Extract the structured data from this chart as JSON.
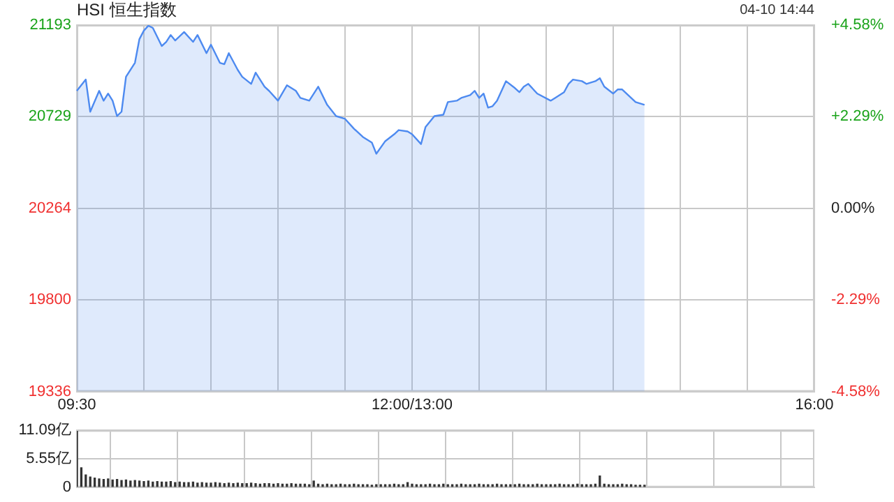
{
  "chart_data": [
    {
      "type": "area",
      "title": "HSI 恒生指数",
      "annotations": [
        "04-10 14:44"
      ],
      "categories": [
        "09:30",
        null,
        null,
        null,
        null,
        null,
        null,
        null,
        null,
        null,
        null,
        null,
        null,
        null,
        null,
        null,
        null,
        null,
        null,
        null,
        null,
        null,
        null,
        null,
        null,
        null,
        null,
        null,
        null,
        null,
        null,
        null,
        null,
        null,
        null,
        null,
        null,
        null,
        null,
        null,
        null,
        null,
        null,
        null,
        null,
        null,
        null,
        null,
        null,
        null,
        null,
        null,
        null,
        null,
        null,
        null,
        null,
        null,
        null,
        null,
        null,
        null,
        null,
        null,
        null,
        null,
        null,
        null,
        null,
        null,
        null,
        null,
        null,
        null,
        null,
        "12:00/13:00",
        null,
        null,
        null,
        null,
        null,
        null,
        null,
        null,
        null,
        null,
        null,
        null,
        null,
        null,
        null,
        null,
        null,
        null,
        null,
        null,
        null,
        null,
        null,
        null,
        null,
        null,
        null,
        null,
        null,
        null,
        null,
        null,
        null,
        null,
        null,
        null,
        null,
        null,
        null,
        null,
        null,
        null,
        null,
        null,
        null,
        null,
        null,
        null,
        null,
        null,
        null,
        null,
        null,
        null,
        null,
        null,
        null,
        null,
        null,
        null,
        null,
        null,
        null,
        null,
        null,
        null,
        null,
        null,
        null,
        null,
        null,
        null,
        null,
        null,
        null,
        null,
        null,
        null,
        null,
        null,
        null,
        null,
        null,
        null,
        null,
        null,
        null,
        null,
        null,
        "16:00"
      ],
      "series": [
        {
          "color": "#4d8af0",
          "values": [
            20860,
            null,
            20917,
            20754,
            null,
            20860,
            20810,
            20846,
            20810,
            20732,
            20754,
            20931,
            null,
            21002,
            21122,
            21165,
            21190,
            21179,
            null,
            21087,
            21108,
            21143,
            21115,
            null,
            21158,
            null,
            21108,
            21143,
            null,
            21051,
            21094,
            null,
            21002,
            20995,
            21051,
            null,
            20966,
            20931,
            null,
            20895,
            20952,
            null,
            20881,
            20860,
            null,
            20810,
            null,
            20888,
            null,
            20860,
            20824,
            null,
            20810,
            null,
            20881,
            null,
            20789,
            null,
            20732,
            null,
            20718,
            null,
            20668,
            null,
            20626,
            null,
            20598,
            20541,
            null,
            20605,
            null,
            20640,
            20661,
            null,
            20654,
            20640,
            null,
            20590,
            20676,
            null,
            20732,
            null,
            20739,
            20803,
            null,
            20810,
            20824,
            null,
            20838,
            20860,
            20824,
            20846,
            20775,
            20782,
            20810,
            null,
            20909,
            null,
            20874,
            20853,
            20881,
            20895,
            null,
            20846,
            null,
            null,
            20810,
            20824,
            null,
            20853,
            20895,
            20917,
            null,
            20909,
            20895,
            null,
            20909,
            20924,
            20881,
            null,
            20846,
            20867,
            20867,
            null,
            20824,
            20803,
            null,
            20789,
            null,
            null,
            null,
            null,
            null,
            null,
            null,
            null,
            null,
            null,
            null,
            null,
            null,
            null,
            null,
            null,
            null,
            null,
            null,
            null,
            null,
            null,
            null,
            null,
            null,
            null,
            null,
            null,
            null,
            null,
            null,
            null,
            null,
            null,
            null,
            null,
            null,
            null
          ]
        }
      ],
      "ylim": [
        19336,
        21193
      ],
      "yticks": [
        19336,
        19800,
        20264,
        20729,
        21193
      ],
      "y2lim": [
        -4.58,
        4.58
      ],
      "y2ticks": [
        {
          "value": -4.58,
          "label": "-4.58%"
        },
        {
          "value": -2.29,
          "label": "-2.29%"
        },
        {
          "value": 0,
          "label": "0.00%"
        },
        {
          "value": 2.29,
          "label": "+2.29%"
        },
        {
          "value": 4.58,
          "label": "+4.58%"
        }
      ],
      "grid": true,
      "legend": false
    },
    {
      "type": "bar",
      "categories": [
        null,
        null,
        null,
        null,
        null,
        null,
        null,
        null,
        null,
        null,
        null,
        null,
        null,
        null,
        null,
        null,
        null,
        null,
        null,
        null,
        null,
        null,
        null,
        null,
        null,
        null,
        null,
        null,
        null,
        null,
        null,
        null,
        null,
        null,
        null,
        null,
        null,
        null,
        null,
        null,
        null,
        null,
        null,
        null,
        null,
        null,
        null,
        null,
        null,
        null,
        null,
        null,
        null,
        null,
        null,
        null,
        null,
        null,
        null,
        null,
        null,
        null,
        null,
        null,
        null,
        null,
        null,
        null,
        null,
        null,
        null,
        null,
        null,
        null,
        null,
        null,
        null,
        null,
        null,
        null,
        null,
        null,
        null,
        null,
        null,
        null,
        null,
        null,
        null,
        null,
        null,
        null,
        null,
        null,
        null,
        null,
        null,
        null,
        null,
        null,
        null,
        null,
        null,
        null,
        null,
        null,
        null,
        null,
        null,
        null,
        null,
        null,
        null,
        null,
        null,
        null,
        null,
        null,
        null,
        null,
        null,
        null,
        null,
        null,
        null,
        null,
        null,
        null,
        null,
        null,
        null,
        null,
        null,
        null,
        null,
        null,
        null,
        null,
        null,
        null,
        null,
        null,
        null,
        null,
        null,
        null,
        null,
        null,
        null,
        null,
        null,
        null,
        null,
        null,
        null,
        null,
        null,
        null,
        null,
        null,
        null,
        null,
        null,
        null,
        null,
        null
      ],
      "series": [
        {
          "color": "#333333",
          "values": [
            10.9,
            3.8,
            2.4,
            2.0,
            1.8,
            1.6,
            1.5,
            1.6,
            1.4,
            1.5,
            1.3,
            1.4,
            1.2,
            1.3,
            1.2,
            1.1,
            1.2,
            1.0,
            1.1,
            1.0,
            1.0,
            1.1,
            0.9,
            1.0,
            0.9,
            0.9,
            1.0,
            0.8,
            0.9,
            0.8,
            0.8,
            0.9,
            0.8,
            0.7,
            0.8,
            0.7,
            0.8,
            0.7,
            0.7,
            0.8,
            0.7,
            0.6,
            0.7,
            0.7,
            0.6,
            0.7,
            0.6,
            0.6,
            0.7,
            0.6,
            0.6,
            0.6,
            0.5,
            1.2,
            0.6,
            0.5,
            0.6,
            0.5,
            0.5,
            0.6,
            0.5,
            0.5,
            0.6,
            0.5,
            0.5,
            0.5,
            0.4,
            0.5,
            0.5,
            0.5,
            0.5,
            0.6,
            0.5,
            0.5,
            0.9,
            0.6,
            0.5,
            0.5,
            0.5,
            0.6,
            0.5,
            0.5,
            0.6,
            0.5,
            0.5,
            0.5,
            0.6,
            0.5,
            0.5,
            0.5,
            0.6,
            0.5,
            0.5,
            0.5,
            0.6,
            0.5,
            0.5,
            0.5,
            0.5,
            0.6,
            0.5,
            0.5,
            0.5,
            0.6,
            0.5,
            0.5,
            0.5,
            0.5,
            0.6,
            0.5,
            0.5,
            0.5,
            0.6,
            0.5,
            0.5,
            0.5,
            0.6,
            2.2,
            0.6,
            0.5,
            0.5,
            0.5,
            0.6,
            0.5,
            0.5,
            0.4,
            0.4,
            0.4,
            null,
            null,
            null,
            null,
            null,
            null,
            null,
            null,
            null,
            null,
            null,
            null,
            null,
            null,
            null,
            null,
            null,
            null,
            null,
            null,
            null,
            null,
            null,
            null,
            null,
            null,
            null,
            null,
            null,
            null,
            null,
            null,
            null,
            null,
            null,
            null,
            null,
            null
          ]
        }
      ],
      "ylim": [
        0,
        11.09
      ],
      "yticks": [
        0,
        {
          "value": 5.55,
          "label": "5.55亿"
        },
        {
          "value": 11.09,
          "label": "11.09亿"
        }
      ],
      "grid": true,
      "legend": false,
      "tick_labels": "y"
    }
  ]
}
